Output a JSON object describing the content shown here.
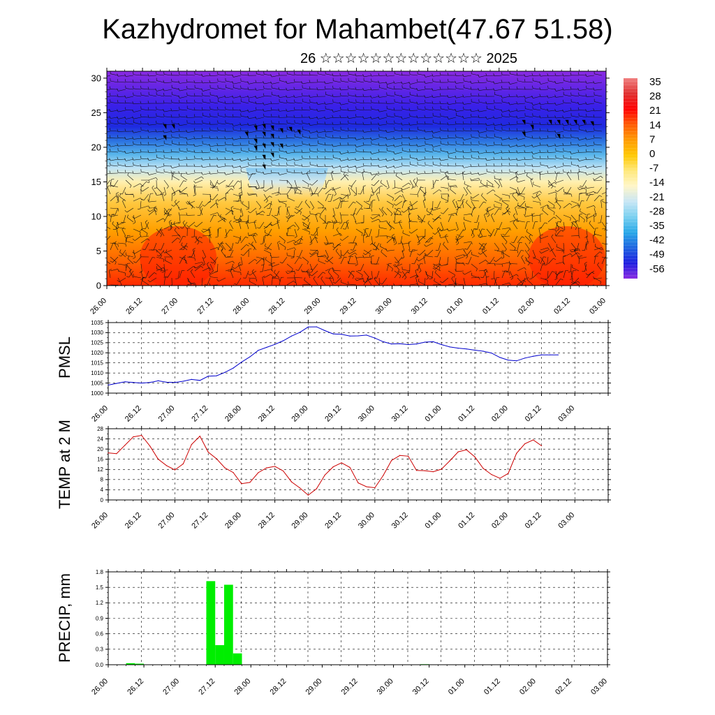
{
  "title": "Kazhydromet for Mahambet(47.67 51.58)",
  "subtitle": "26 ☆☆☆☆☆☆☆☆☆☆☆☆☆ 2025",
  "x_ticks": [
    "26.00",
    "26.12",
    "27.00",
    "27.12",
    "28.00",
    "28.12",
    "29.00",
    "29.12",
    "30.00",
    "30.12",
    "01.00",
    "01.12",
    "02.00",
    "02.12",
    "03.00"
  ],
  "chart_data": [
    {
      "type": "heatmap",
      "description_of_fill": "temperature cross-section with wind barbs",
      "ylabel": "",
      "y_ticks": [
        0,
        5,
        10,
        15,
        20,
        25,
        30
      ],
      "ylim": [
        0,
        31
      ],
      "colorbar": {
        "labels": [
          "35",
          "28",
          "21",
          "14",
          "7",
          "0",
          "-7",
          "-14",
          "-21",
          "-28",
          "-35",
          "-42",
          "-49",
          "-56"
        ],
        "colors": [
          "#f08080",
          "#e03030",
          "#ff0000",
          "#ff5a00",
          "#ff9a00",
          "#ffc800",
          "#ffe87a",
          "#fff6c8",
          "#c8e6f5",
          "#7ad0f0",
          "#28a8e8",
          "#1e64e0",
          "#1e1ee0",
          "#8a2be2"
        ]
      },
      "field_stops": [
        {
          "h": 0,
          "color": "#ff2a00"
        },
        {
          "h": 4,
          "color": "#ff6a00"
        },
        {
          "h": 8,
          "color": "#ffa000"
        },
        {
          "h": 12,
          "color": "#ffc840"
        },
        {
          "h": 15,
          "color": "#fff0b0"
        },
        {
          "h": 17,
          "color": "#bfe3f5"
        },
        {
          "h": 19,
          "color": "#56b4ea"
        },
        {
          "h": 21,
          "color": "#2a70e0"
        },
        {
          "h": 23,
          "color": "#1e2ae0"
        },
        {
          "h": 26,
          "color": "#3a20e8"
        },
        {
          "h": 31,
          "color": "#8a2be2"
        }
      ],
      "cold_dome": {
        "x_from": 3.9,
        "x_to": 6.2,
        "top_h": 12.5
      }
    },
    {
      "type": "line",
      "ylabel": "PMSL",
      "ylim": [
        1000,
        1035
      ],
      "y_ticks": [
        1000,
        1005,
        1010,
        1015,
        1020,
        1025,
        1030,
        1035
      ],
      "color": "#0000cc",
      "x": [
        0,
        0.25,
        0.5,
        0.75,
        1,
        1.25,
        1.5,
        1.75,
        2,
        2.25,
        2.5,
        2.75,
        3,
        3.25,
        3.5,
        3.75,
        4,
        4.25,
        4.5,
        4.75,
        5,
        5.25,
        5.5,
        5.75,
        6,
        6.25,
        6.5,
        6.75,
        7,
        7.25,
        7.5,
        7.75,
        8,
        8.25,
        8.5,
        8.75,
        9,
        9.25,
        9.5,
        9.75,
        10,
        10.25,
        10.5,
        10.75,
        11,
        11.25,
        11.5,
        11.75,
        12,
        12.25,
        12.5,
        12.75,
        13,
        13.25,
        13.5
      ],
      "values": [
        1004,
        1004.8,
        1005.6,
        1005.3,
        1005.0,
        1005.3,
        1006.1,
        1005.4,
        1005.3,
        1005.9,
        1006.8,
        1006.3,
        1008.4,
        1008.6,
        1010.3,
        1012.4,
        1015.4,
        1018.0,
        1021.2,
        1022.7,
        1024.2,
        1026.0,
        1028.3,
        1030.2,
        1032.8,
        1032.9,
        1031.0,
        1029.4,
        1029.2,
        1028.3,
        1028.4,
        1028.8,
        1027.3,
        1025.5,
        1024.4,
        1024.5,
        1024.1,
        1024.4,
        1025.3,
        1025.5,
        1024.1,
        1022.9,
        1022.3,
        1021.9,
        1021.3,
        1020.8,
        1019.9,
        1017.7,
        1016.4,
        1016.0,
        1017.4,
        1018.3,
        1019.0,
        1019.0,
        1019.0
      ]
    },
    {
      "type": "line",
      "ylabel": "TEMP at 2 M",
      "ylim": [
        0,
        28
      ],
      "y_ticks": [
        0,
        4,
        8,
        12,
        16,
        20,
        24,
        28
      ],
      "color": "#cc0000",
      "x": [
        0,
        0.25,
        0.5,
        0.75,
        1,
        1.25,
        1.5,
        1.75,
        2,
        2.25,
        2.5,
        2.75,
        3,
        3.25,
        3.5,
        3.75,
        4,
        4.25,
        4.5,
        4.75,
        5,
        5.25,
        5.5,
        5.75,
        6,
        6.25,
        6.5,
        6.75,
        7,
        7.25,
        7.5,
        7.75,
        8,
        8.25,
        8.5,
        8.75,
        9,
        9.25,
        9.5,
        9.75,
        10,
        10.25,
        10.5,
        10.75,
        11,
        11.25,
        11.5,
        11.75,
        12,
        12.25,
        12.5,
        12.75,
        13
      ],
      "values": [
        18.5,
        18.2,
        21.5,
        24.8,
        25.4,
        21.2,
        16.0,
        13.5,
        11.8,
        14.2,
        21.8,
        25.1,
        18.8,
        16.2,
        12.6,
        10.8,
        6.4,
        6.9,
        10.7,
        12.6,
        13.2,
        11.4,
        7.1,
        4.7,
        1.9,
        4.4,
        9.8,
        13.0,
        14.6,
        12.8,
        6.7,
        5.2,
        4.8,
        9.6,
        15.5,
        17.5,
        17.2,
        11.6,
        11.5,
        11.1,
        12.1,
        15.4,
        18.9,
        19.7,
        16.9,
        12.4,
        10.0,
        8.5,
        10.4,
        18.3,
        22.1,
        23.6,
        21.3
      ]
    },
    {
      "type": "bar",
      "ylabel": "PRECIP, mm",
      "ylim": [
        0,
        1.8
      ],
      "y_ticks": [
        "0.0",
        "0.3",
        "0.6",
        "0.9",
        "1.2",
        "1.5",
        "1.8"
      ],
      "color": "#00ee00",
      "bars": [
        {
          "x": 0.5,
          "value": 0.03
        },
        {
          "x": 0.75,
          "value": 0.02
        },
        {
          "x": 2.75,
          "value": 1.62
        },
        {
          "x": 3.0,
          "value": 0.38
        },
        {
          "x": 3.25,
          "value": 1.55
        },
        {
          "x": 3.5,
          "value": 0.22
        },
        {
          "x": 8.75,
          "value": 0.01
        }
      ]
    }
  ]
}
